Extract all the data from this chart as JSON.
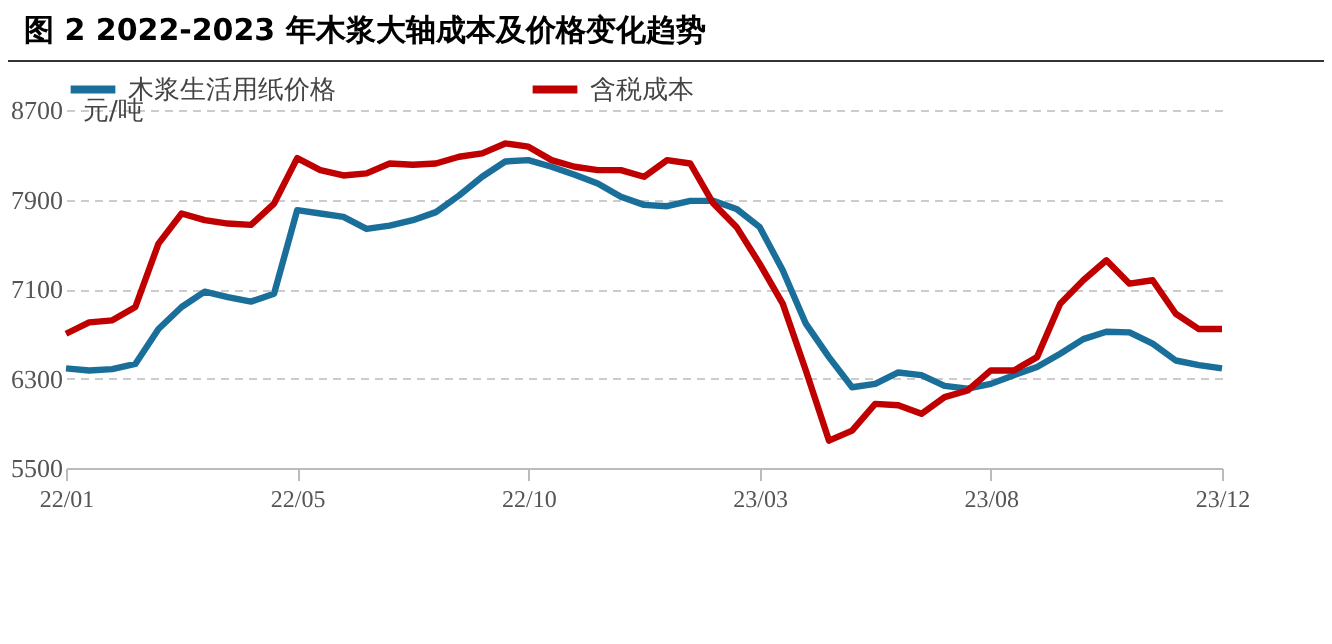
{
  "chart_data": {
    "type": "line",
    "title": "图 2 2022-2023 年木浆大轴成本及价格变化趋势",
    "ylabel": "元/吨",
    "categories": [
      "22/01",
      null,
      null,
      null,
      null,
      null,
      null,
      null,
      null,
      null,
      "22/05",
      null,
      null,
      null,
      null,
      null,
      null,
      null,
      null,
      null,
      "22/10",
      null,
      null,
      null,
      null,
      null,
      null,
      null,
      null,
      null,
      "23/03",
      null,
      null,
      null,
      null,
      null,
      null,
      null,
      null,
      null,
      "23/08",
      null,
      null,
      null,
      null,
      null,
      null,
      null,
      null,
      null,
      "23/12"
    ],
    "series": [
      {
        "name": "木浆生活用纸价格",
        "color": "#1a6f9a",
        "values": [
          6390,
          6372,
          6384,
          6430,
          6742,
          6939,
          7076,
          7028,
          6987,
          7058,
          7805,
          7775,
          7745,
          7637,
          7667,
          7715,
          7787,
          7936,
          8103,
          8240,
          8252,
          8193,
          8121,
          8043,
          7924,
          7852,
          7840,
          7888,
          7888,
          7816,
          7655,
          7267,
          6790,
          6491,
          6222,
          6252,
          6354,
          6330,
          6234,
          6210,
          6252,
          6330,
          6402,
          6521,
          6652,
          6718,
          6712,
          6611,
          6461,
          6420,
          6390
        ]
      },
      {
        "name": "含税成本",
        "color": "#c00000",
        "values": [
          6700,
          6802,
          6820,
          6939,
          7506,
          7775,
          7715,
          7685,
          7673,
          7864,
          8270,
          8163,
          8115,
          8133,
          8222,
          8210,
          8222,
          8282,
          8312,
          8401,
          8372,
          8252,
          8193,
          8163,
          8163,
          8103,
          8252,
          8222,
          7864,
          7655,
          7327,
          6969,
          6372,
          5745,
          5834,
          6073,
          6061,
          5984,
          6133,
          6193,
          6372,
          6372,
          6491,
          6969,
          7178,
          7357,
          7148,
          7178,
          6879,
          6742,
          6742
        ]
      }
    ],
    "ylim": [
      5500,
      8700
    ],
    "yticks": [
      5500,
      6300,
      7100,
      7900,
      8700
    ],
    "grid": "y",
    "legend": "top",
    "line_style": "solid",
    "marker": "none"
  }
}
